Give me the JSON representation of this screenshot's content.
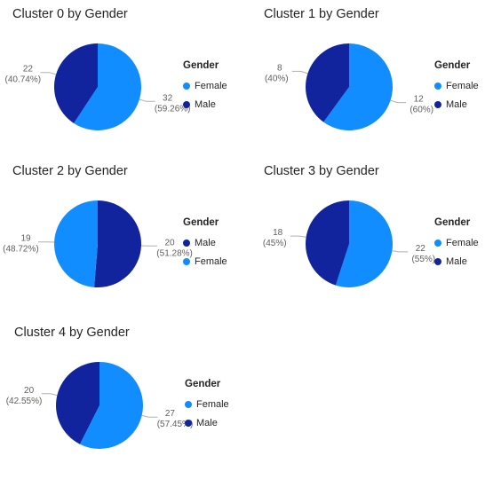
{
  "colors": {
    "Female": "#118dff",
    "Male": "#12239e"
  },
  "chart_data": [
    {
      "type": "pie",
      "title": "Cluster 0 by Gender",
      "legend_title": "Gender",
      "legend_order": [
        "Female",
        "Male"
      ],
      "legend_position": "right",
      "slices": [
        {
          "label": "Female",
          "value": 32,
          "percent_label": "(59.26%)"
        },
        {
          "label": "Male",
          "value": 22,
          "percent_label": "(40.74%)"
        }
      ]
    },
    {
      "type": "pie",
      "title": "Cluster 1 by Gender",
      "legend_title": "Gender",
      "legend_order": [
        "Female",
        "Male"
      ],
      "legend_position": "right",
      "slices": [
        {
          "label": "Female",
          "value": 12,
          "percent_label": "(60%)"
        },
        {
          "label": "Male",
          "value": 8,
          "percent_label": "(40%)"
        }
      ]
    },
    {
      "type": "pie",
      "title": "Cluster 2 by Gender",
      "legend_title": "Gender",
      "legend_order": [
        "Male",
        "Female"
      ],
      "legend_position": "right",
      "slices": [
        {
          "label": "Male",
          "value": 20,
          "percent_label": "(51.28%)"
        },
        {
          "label": "Female",
          "value": 19,
          "percent_label": "(48.72%)"
        }
      ]
    },
    {
      "type": "pie",
      "title": "Cluster 3 by Gender",
      "legend_title": "Gender",
      "legend_order": [
        "Female",
        "Male"
      ],
      "legend_position": "right",
      "slices": [
        {
          "label": "Female",
          "value": 22,
          "percent_label": "(55%)"
        },
        {
          "label": "Male",
          "value": 18,
          "percent_label": "(45%)"
        }
      ]
    },
    {
      "type": "pie",
      "title": "Cluster 4 by Gender",
      "legend_title": "Gender",
      "legend_order": [
        "Female",
        "Male"
      ],
      "legend_position": "right",
      "slices": [
        {
          "label": "Female",
          "value": 27,
          "percent_label": "(57.45%)"
        },
        {
          "label": "Male",
          "value": 20,
          "percent_label": "(42.55%)"
        }
      ]
    }
  ]
}
